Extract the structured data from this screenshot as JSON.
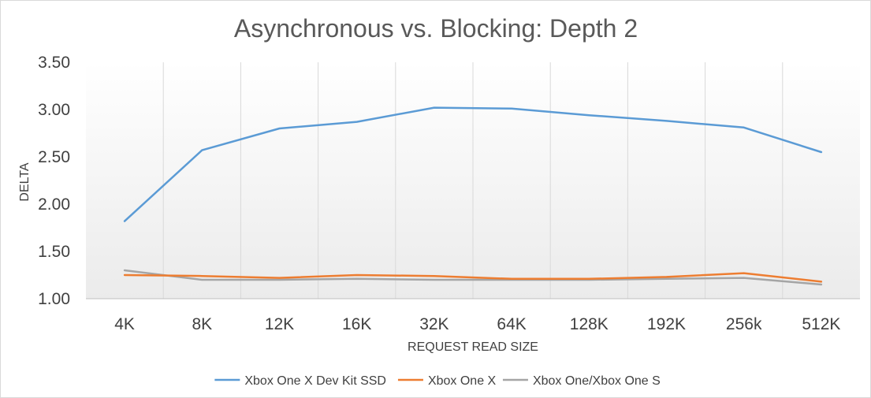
{
  "chart_data": {
    "type": "line",
    "title": "Asynchronous vs. Blocking: Depth 2",
    "xlabel": "REQUEST READ SIZE",
    "ylabel": "DELTA",
    "categories": [
      "4K",
      "8K",
      "12K",
      "16K",
      "32K",
      "64K",
      "128K",
      "192K",
      "256k",
      "512K"
    ],
    "ylim": [
      1.0,
      3.5
    ],
    "yticks": [
      1.0,
      1.5,
      2.0,
      2.5,
      3.0,
      3.5
    ],
    "ytick_labels": [
      "1.00",
      "1.50",
      "2.00",
      "2.50",
      "3.00",
      "3.50"
    ],
    "grid": "vertical",
    "legend_position": "bottom",
    "series": [
      {
        "name": "Xbox One X Dev Kit SSD",
        "color": "#5b9bd5",
        "values": [
          1.82,
          2.57,
          2.8,
          2.87,
          3.02,
          3.01,
          2.94,
          2.88,
          2.81,
          2.55
        ]
      },
      {
        "name": "Xbox One X",
        "color": "#ed7d31",
        "values": [
          1.25,
          1.24,
          1.22,
          1.25,
          1.24,
          1.21,
          1.21,
          1.23,
          1.27,
          1.18
        ]
      },
      {
        "name": "Xbox One/Xbox One S",
        "color": "#a5a5a5",
        "values": [
          1.3,
          1.2,
          1.2,
          1.21,
          1.2,
          1.2,
          1.2,
          1.21,
          1.22,
          1.15
        ]
      }
    ]
  }
}
